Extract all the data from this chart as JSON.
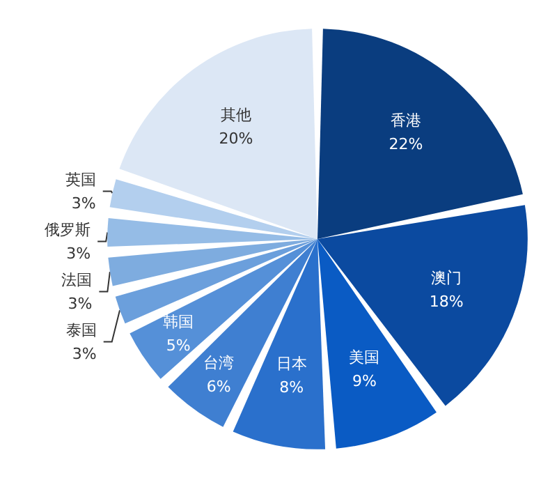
{
  "chart_data": {
    "type": "pie",
    "categories": [
      "香港",
      "澳门",
      "美国",
      "日本",
      "台湾",
      "韩国",
      "泰国",
      "法国",
      "俄罗斯",
      "英国",
      "其他"
    ],
    "values": [
      22,
      18,
      9,
      8,
      6,
      5,
      3,
      3,
      3,
      3,
      20
    ],
    "value_labels": [
      "22%",
      "18%",
      "9%",
      "8%",
      "6%",
      "5%",
      "3%",
      "3%",
      "3%",
      "3%",
      "20%"
    ],
    "colors": [
      "#0a3d7f",
      "#0b4aa0",
      "#0a5bc4",
      "#2a70cc",
      "#3f7fd1",
      "#5590d8",
      "#6b9fdc",
      "#7eacdf",
      "#95bce6",
      "#b3cfee",
      "#dce7f5"
    ],
    "legend": false
  }
}
